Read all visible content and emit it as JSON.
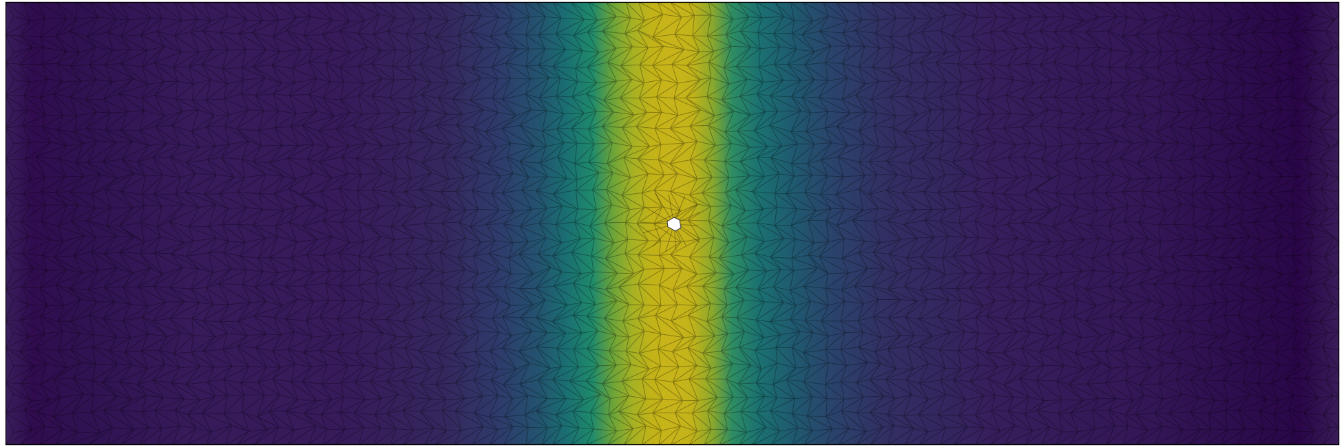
{
  "figure": {
    "colormap": "viridis",
    "colors": {
      "low": "#440154",
      "mid_low": "#3b528b",
      "mid": "#21918c",
      "mid_high": "#5ec962",
      "high": "#c9b517",
      "mesh_edge": "#000000",
      "hole": "#ffffff",
      "frame": "#000000"
    },
    "field_description_values": {
      "peak_fraction_of_width": 0.5,
      "hole_present": true
    }
  }
}
